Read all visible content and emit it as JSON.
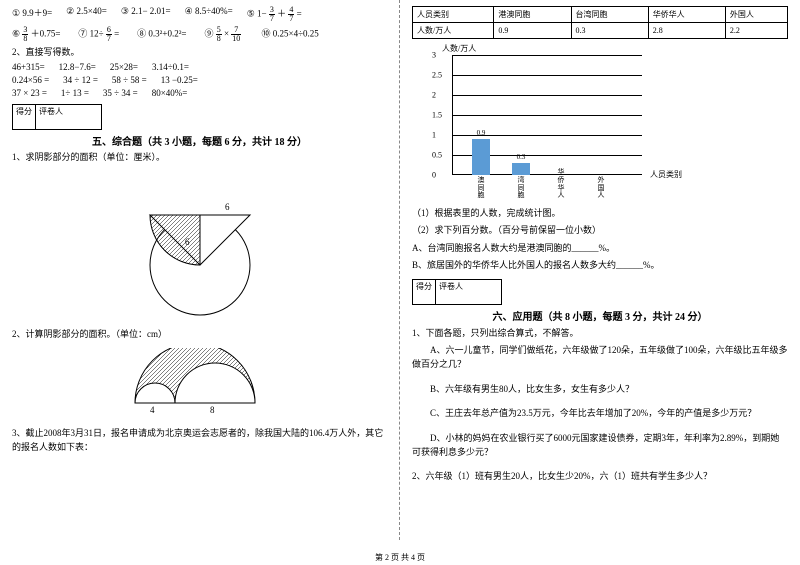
{
  "left": {
    "eq1": [
      "① 9.9＋9=",
      "② 2.5×40=",
      "③ 2.1− 2.01=",
      "④ 8.5÷40%=",
      "⑤ 1−"
    ],
    "eq1_frac": {
      "n": "3",
      "d": "7"
    },
    "eq1_tail": "＋",
    "eq2_pre": "⑥",
    "eq2_frac1": {
      "n": "3",
      "d": "8"
    },
    "eq2_mid": "＋0.75=　　⑦ 12÷",
    "eq2_frac2": {
      "n": "6",
      "d": "7"
    },
    "eq2_mid2": "=　　⑧ 0.3²+0.2²=　　⑨",
    "eq2_frac3": {
      "n": "5",
      "d": "8"
    },
    "eq2_mid3": "×",
    "eq2_frac4": {
      "n": "7",
      "d": "10"
    },
    "eq2_tail": "　　⑩ 0.25×4÷0.25",
    "q2": "2、直接写得数。",
    "grid": [
      [
        "46+315=",
        "12.8−7.6=",
        "25×28=",
        "3.14÷0.1="
      ],
      [
        "0.24×56 =",
        "34 ÷ 12 =",
        "58 ÷ 58 =",
        "13 −0.25="
      ],
      [
        "37 × 23 =",
        "1÷ 13 =",
        "35 ÷ 34 =",
        "80×40%="
      ]
    ],
    "score": {
      "a": "得分",
      "b": "评卷人"
    },
    "sec5": "五、综合题（共 3 小题，每题 6 分，共计 18 分）",
    "q5_1": "1、求阴影部分的面积（单位：厘米）。",
    "fig1": {
      "top_label": "6",
      "left_label": "6"
    },
    "q5_2": "2、计算阴影部分的面积。（单位：cm）",
    "fig2": {
      "a": "4",
      "b": "8"
    },
    "q5_3": "3、截止2008年3月31日，报名申请成为北京奥运会志愿者的，除我国大陆的106.4万人外，其它的报名人数如下表："
  },
  "right": {
    "table": {
      "head": [
        "人员类别",
        "港澳同胞",
        "台湾同胞",
        "华侨华人",
        "外国人"
      ],
      "row": [
        "人数/万人",
        "0.9",
        "0.3",
        "2.8",
        "2.2"
      ]
    },
    "chart": {
      "ylabel": "人数/万人",
      "xlabel": "人员类别",
      "yticks": [
        0,
        0.5,
        1,
        1.5,
        2,
        2.5,
        3
      ],
      "cats": [
        "港澳同胞",
        "台湾同胞",
        "华侨华人",
        "外国人"
      ],
      "values": [
        0.9,
        0.3,
        null,
        null
      ],
      "bar_color": "#5b9bd5",
      "ylim": 3
    },
    "sub1": "（1）根据表里的人数，完成统计图。",
    "sub2": "（2）求下列百分数。（百分号前保留一位小数）",
    "subA": "A、台湾同胞报名人数大约是港澳同胞的______%。",
    "subB": "B、旅居国外的华侨华人比外国人的报名人数多大约______%。",
    "score": {
      "a": "得分",
      "b": "评卷人"
    },
    "sec6": "六、应用题（共 8 小题，每题 3 分，共计 24 分）",
    "q6_1": "1、下面各题，只列出综合算式，不解答。",
    "q6_1a": "A、六一儿童节，同学们做纸花，六年级做了120朵，五年级做了100朵，六年级比五年级多做百分之几？",
    "q6_1b": "B、六年级有男生80人，比女生多，女生有多少人？",
    "q6_1c": "C、王庄去年总产值为23.5万元，今年比去年增加了20%，今年的产值是多少万元？",
    "q6_1d": "D、小林的妈妈在农业银行买了6000元国家建设债券，定期3年，年利率为2.89%，到期她可获得利息多少元？",
    "q6_2": "2、六年级（1）班有男生20人，比女生少20%，六（1）班共有学生多少人？"
  },
  "footer": "第 2 页 共 4 页"
}
